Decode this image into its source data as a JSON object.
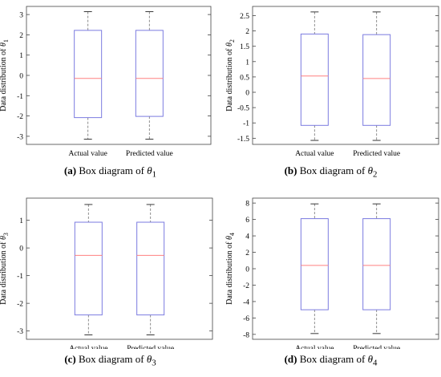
{
  "chart_data": [
    {
      "type": "box",
      "ylabel": "Data distribution of θ1",
      "ylabel_main": "Data distribution of ",
      "ylabel_sym": "θ",
      "ylabel_sub": "1",
      "ylim": [
        -3.4,
        3.4
      ],
      "yticks": [
        -3,
        -2,
        -1,
        0,
        1,
        2,
        3
      ],
      "categories": [
        "Actual value",
        "Predicted value"
      ],
      "boxes": [
        {
          "whisker_low": -3.14,
          "q1": -2.08,
          "median": -0.15,
          "q3": 2.22,
          "whisker_high": 3.14
        },
        {
          "whisker_low": -3.14,
          "q1": -2.02,
          "median": -0.15,
          "q3": 2.22,
          "whisker_high": 3.14
        }
      ],
      "colors": {
        "box": "#7b7be0",
        "median": "#ff8080",
        "whisker": "#808080"
      },
      "caption": {
        "label": "(a)",
        "text": " Box diagram of ",
        "sym": "θ",
        "sub": "1"
      }
    },
    {
      "type": "box",
      "ylabel": "Data distribution of θ2",
      "ylabel_main": "Data distribution of ",
      "ylabel_sym": "θ",
      "ylabel_sub": "2",
      "ylim": [
        -1.7,
        2.8
      ],
      "yticks": [
        -1.5,
        -1,
        -0.5,
        0,
        0.5,
        1,
        1.5,
        2,
        2.5
      ],
      "categories": [
        "Actual value",
        "Predicted value"
      ],
      "boxes": [
        {
          "whisker_low": -1.57,
          "q1": -1.08,
          "median": 0.53,
          "q3": 1.9,
          "whisker_high": 2.62
        },
        {
          "whisker_low": -1.57,
          "q1": -1.08,
          "median": 0.45,
          "q3": 1.88,
          "whisker_high": 2.62
        }
      ],
      "colors": {
        "box": "#7b7be0",
        "median": "#ff8080",
        "whisker": "#808080"
      },
      "caption": {
        "label": "(b)",
        "text": " Box diagram of ",
        "sym": "θ",
        "sub": "2"
      }
    },
    {
      "type": "box",
      "ylabel": "Data distribution of θ3",
      "ylabel_main": "Data distribution of ",
      "ylabel_sym": "θ",
      "ylabel_sub": "3",
      "ylim": [
        -3.3,
        1.8
      ],
      "yticks": [
        -3,
        -2,
        -1,
        0,
        1
      ],
      "categories": [
        "Actual value",
        "Predicted value"
      ],
      "boxes": [
        {
          "whisker_low": -3.14,
          "q1": -2.42,
          "median": -0.27,
          "q3": 0.93,
          "whisker_high": 1.57
        },
        {
          "whisker_low": -3.14,
          "q1": -2.42,
          "median": -0.27,
          "q3": 0.93,
          "whisker_high": 1.57
        }
      ],
      "colors": {
        "box": "#7b7be0",
        "median": "#ff8080",
        "whisker": "#808080"
      },
      "caption": {
        "label": "(c)",
        "text": " Box diagram of ",
        "sym": "θ",
        "sub": "3"
      }
    },
    {
      "type": "box",
      "ylabel": "Data distribution of θ4",
      "ylabel_main": "Data distribution of ",
      "ylabel_sym": "θ",
      "ylabel_sub": "4",
      "ylim": [
        -8.6,
        8.6
      ],
      "yticks": [
        -8,
        -6,
        -4,
        -2,
        0,
        2,
        4,
        6,
        8
      ],
      "categories": [
        "Actual value",
        "Predicted value"
      ],
      "boxes": [
        {
          "whisker_low": -7.9,
          "q1": -5.0,
          "median": 0.4,
          "q3": 6.1,
          "whisker_high": 7.9
        },
        {
          "whisker_low": -7.9,
          "q1": -5.0,
          "median": 0.4,
          "q3": 6.1,
          "whisker_high": 7.9
        }
      ],
      "colors": {
        "box": "#7b7be0",
        "median": "#ff8080",
        "whisker": "#808080"
      },
      "caption": {
        "label": "(d)",
        "text": " Box diagram of ",
        "sym": "θ",
        "sub": "4"
      }
    }
  ]
}
